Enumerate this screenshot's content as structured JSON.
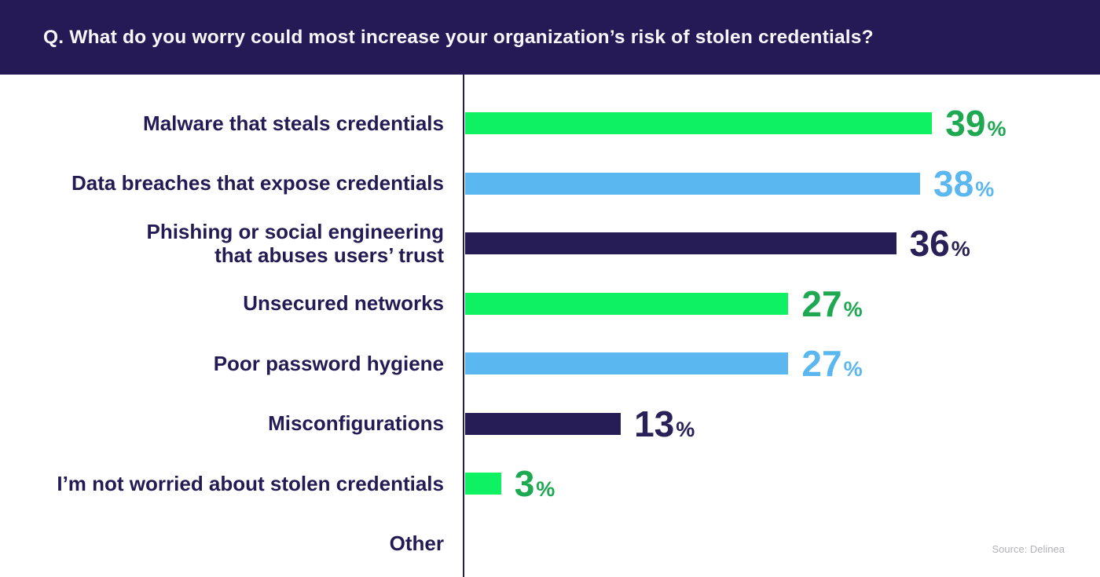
{
  "header": {
    "question": "Q. What do you worry could most increase your organization’s risk of stolen credentials?"
  },
  "source": "Source: Delinea",
  "colors": {
    "banner_bg": "#251a56",
    "axis": "#241b54",
    "label_text": "#241b54",
    "source_text": "#b3b1b5",
    "bar_green": "#0df163",
    "bar_blue": "#5ab7f0",
    "bar_navy": "#261c56",
    "value_green": "#1da851",
    "value_blue": "#5ab7f0",
    "value_navy": "#2a2058"
  },
  "chart_data": {
    "type": "bar",
    "orientation": "horizontal",
    "title": "Q. What do you worry could most increase your organization’s risk of stolen credentials?",
    "unit": "%",
    "xlim": [
      0,
      42
    ],
    "grid": false,
    "legend": "none",
    "categories": [
      "Malware that steals credentials",
      "Data breaches that expose credentials",
      "Phishing or social engineering\nthat abuses users’ trust",
      "Unsecured networks",
      "Poor password hygiene",
      "Misconfigurations",
      "I’m not worried about stolen credentials",
      "Other"
    ],
    "values": [
      39,
      38,
      36,
      27,
      27,
      13,
      3,
      0
    ],
    "row_colors": [
      "green",
      "blue",
      "navy",
      "green",
      "blue",
      "navy",
      "green",
      "green"
    ]
  }
}
